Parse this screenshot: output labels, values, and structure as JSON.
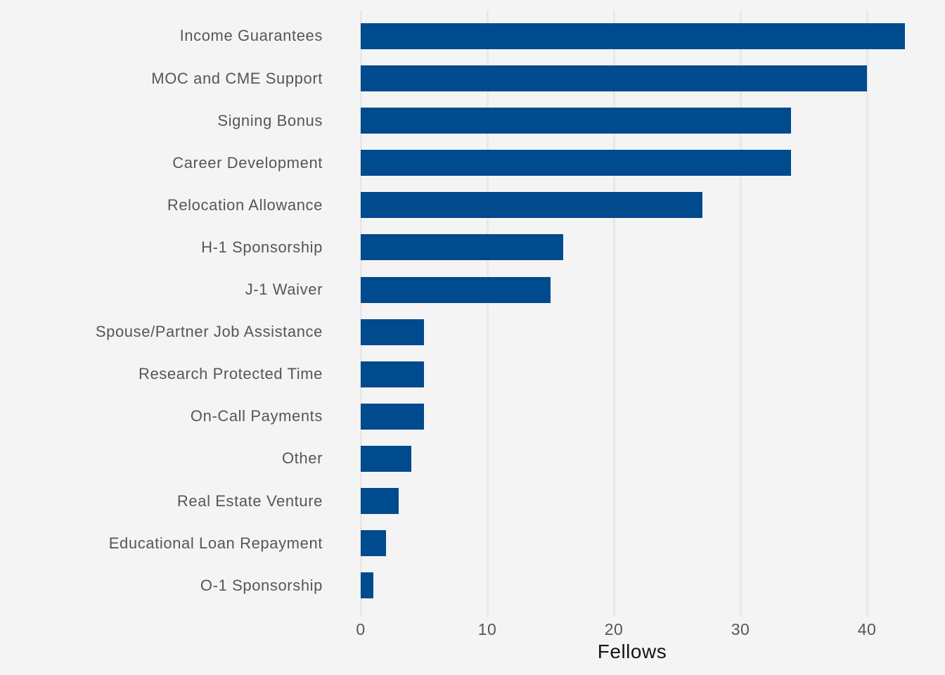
{
  "chart_data": {
    "type": "bar",
    "orientation": "horizontal",
    "title": "",
    "xlabel": "Fellows",
    "ylabel": "",
    "categories": [
      "Income Guarantees",
      "MOC and CME Support",
      "Signing Bonus",
      "Career Development",
      "Relocation Allowance",
      "H-1 Sponsorship",
      "J-1 Waiver",
      "Spouse/Partner Job Assistance",
      "Research Protected Time",
      "On-Call Payments",
      "Other",
      "Real Estate Venture",
      "Educational Loan Repayment",
      "O-1 Sponsorship"
    ],
    "values": [
      43,
      40,
      34,
      34,
      27,
      16,
      15,
      5,
      5,
      5,
      4,
      3,
      2,
      1
    ],
    "xticks": [
      0,
      10,
      20,
      30,
      40
    ],
    "xtick_labels": [
      "0",
      "10",
      "20",
      "30",
      "40"
    ],
    "xlim": [
      0,
      43.5
    ],
    "grid": true,
    "legend": false,
    "colors": {
      "bar": "#004A8E",
      "background": "#F4F4F4",
      "gridline": "#E8E8E9",
      "category_text": "#54565A",
      "tick_text": "#54565A",
      "axis_title_text": "#141414"
    }
  }
}
